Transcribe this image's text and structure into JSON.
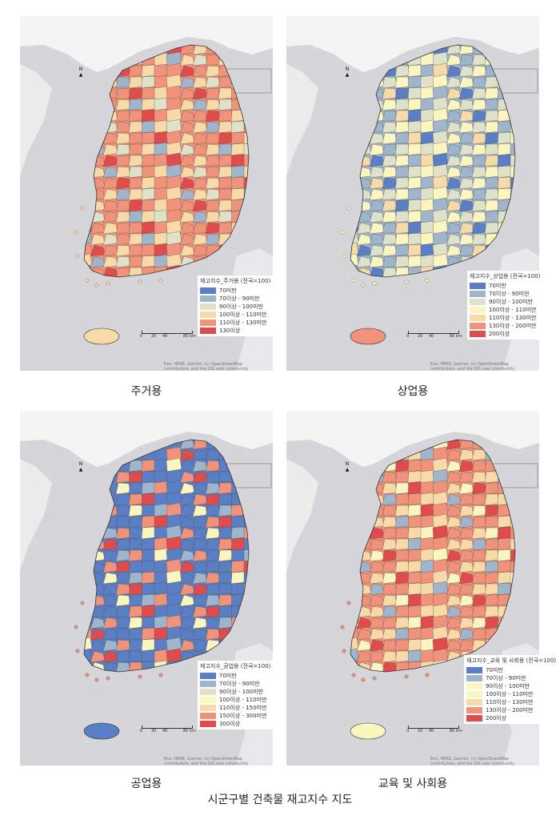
{
  "figure_title": "시군구별 건축물 재고지수 지도",
  "scale_labels": [
    "0",
    "20",
    "40",
    "80 km"
  ],
  "north_label": "N",
  "attribution": "Esri, HERE, Garmin, (c) OpenStreetMap contributors, and the GIS user community",
  "maps": [
    {
      "caption": "주거용",
      "legend_title": "재고지수_주거용 (전국=100)",
      "legend": [
        {
          "label": "70미만",
          "color": "#5b7fc4"
        },
        {
          "label": "70이상 - 90미만",
          "color": "#9fb5cc"
        },
        {
          "label": "90이상 - 100미만",
          "color": "#dfe2c8"
        },
        {
          "label": "100이상 - 110미만",
          "color": "#f8d9a8"
        },
        {
          "label": "110이상 - 130미만",
          "color": "#f0937a"
        },
        {
          "label": "130이상",
          "color": "#e04b4b"
        }
      ],
      "palette": [
        "#f0937a",
        "#f0937a",
        "#f8d9a8",
        "#dfe2c8",
        "#f0937a",
        "#f8d9a8",
        "#e04b4b",
        "#9fb5cc",
        "#f0937a",
        "#f8d9a8"
      ],
      "jeju_color": "#f8d9a8"
    },
    {
      "caption": "상업용",
      "legend_title": "재고지수_상업용 (전국=100)",
      "legend": [
        {
          "label": "70미만",
          "color": "#5b7fc4"
        },
        {
          "label": "70이상 - 90미만",
          "color": "#9fb5cc"
        },
        {
          "label": "90이상 - 100미만",
          "color": "#dfe2c8"
        },
        {
          "label": "100이상 - 110미만",
          "color": "#fbf5c0"
        },
        {
          "label": "110이상 - 130미만",
          "color": "#f8d9a8"
        },
        {
          "label": "130이상 - 200미만",
          "color": "#f0937a"
        },
        {
          "label": "200이상",
          "color": "#e04b4b"
        }
      ],
      "palette": [
        "#9fb5cc",
        "#dfe2c8",
        "#fbf5c0",
        "#9fb5cc",
        "#dfe2c8",
        "#fbf5c0",
        "#5b7fc4",
        "#dfe2c8",
        "#f8d9a8",
        "#fbf5c0"
      ],
      "jeju_color": "#f0937a"
    },
    {
      "caption": "공업용",
      "legend_title": "재고지수_공업용 (전국=100)",
      "legend": [
        {
          "label": "70미만",
          "color": "#5b7fc4"
        },
        {
          "label": "70이상 - 90미만",
          "color": "#9fb5cc"
        },
        {
          "label": "90이상 - 100미만",
          "color": "#dfe2c8"
        },
        {
          "label": "100이상 - 110미만",
          "color": "#fbf5c0"
        },
        {
          "label": "110이상 - 150미만",
          "color": "#f8d9a8"
        },
        {
          "label": "150이상 - 300미만",
          "color": "#f0937a"
        },
        {
          "label": "300이상",
          "color": "#e04b4b"
        }
      ],
      "palette": [
        "#5b7fc4",
        "#5b7fc4",
        "#f0937a",
        "#5b7fc4",
        "#9fb5cc",
        "#e04b4b",
        "#5b7fc4",
        "#f0937a",
        "#fbf5c0",
        "#5b7fc4"
      ],
      "jeju_color": "#5b7fc4"
    },
    {
      "caption": "교육 및 사회용",
      "legend_title": "재고지수_교육 및 사회용 (전국=100)",
      "legend": [
        {
          "label": "70미만",
          "color": "#5b7fc4"
        },
        {
          "label": "70이상 - 90미만",
          "color": "#9fb5cc"
        },
        {
          "label": "90이상 - 100미만",
          "color": "#fbf5c0"
        },
        {
          "label": "100이상 - 110미만",
          "color": "#fbf5c0"
        },
        {
          "label": "110이상 - 130미만",
          "color": "#f8d9a8"
        },
        {
          "label": "130이상 - 200미만",
          "color": "#f0937a"
        },
        {
          "label": "200이상",
          "color": "#e04b4b"
        }
      ],
      "palette": [
        "#f0937a",
        "#f8d9a8",
        "#f0937a",
        "#f8d9a8",
        "#e04b4b",
        "#f0937a",
        "#fbf5c0",
        "#f0937a",
        "#f8d9a8",
        "#9fb5cc"
      ],
      "jeju_color": "#fbf5c0"
    }
  ]
}
